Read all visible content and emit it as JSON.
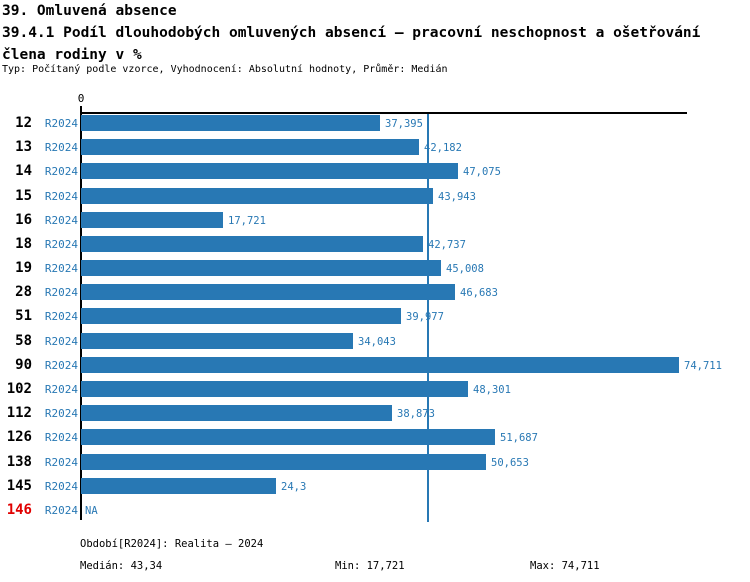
{
  "header": {
    "title": "39. Omluvená absence",
    "subtitle_line1": "39.4.1 Podíl dlouhodobých omluvených absencí – pracovní neschopnost a ošetřování",
    "subtitle_line2": "člena rodiny v %",
    "meta": "Typ: Počítaný podle vzorce, Vyhodnocení: Absolutní hodnoty, Průměr: Medián"
  },
  "axis": {
    "zero_label": "0"
  },
  "chart_data": {
    "type": "bar",
    "orientation": "horizontal",
    "series_label": "R2024",
    "categories": [
      "12",
      "13",
      "14",
      "15",
      "16",
      "18",
      "19",
      "28",
      "51",
      "58",
      "90",
      "102",
      "112",
      "126",
      "138",
      "145",
      "146"
    ],
    "values": [
      37.395,
      42.182,
      47.075,
      43.943,
      17.721,
      42.737,
      45.008,
      46.683,
      39.977,
      34.043,
      74.711,
      48.301,
      38.873,
      51.687,
      50.653,
      24.3,
      null
    ],
    "value_labels": [
      "37,395",
      "42,182",
      "47,075",
      "43,943",
      "17,721",
      "42,737",
      "45,008",
      "46,683",
      "39,977",
      "34,043",
      "74,711",
      "48,301",
      "38,873",
      "51,687",
      "50,653",
      "24,3",
      "NA"
    ],
    "highlight_category": "146",
    "xlim": [
      0,
      74.711
    ],
    "median": 43.34,
    "grid": false,
    "legend": false,
    "title": "39. Omluvená absence",
    "xlabel": "",
    "ylabel": ""
  },
  "footer": {
    "period": "Období[R2024]: Realita – 2024",
    "median": "Medián: 43,34",
    "min": "Min: 17,721",
    "max": "Max: 74,711"
  },
  "colors": {
    "bar": "#2878b4",
    "blue_text": "#2878b4",
    "highlight_red": "#e00000",
    "axis_black": "#000000"
  }
}
